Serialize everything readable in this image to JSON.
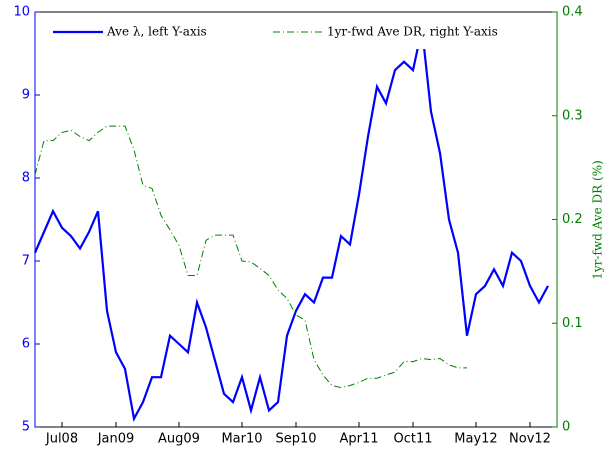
{
  "chart_data": {
    "type": "line",
    "x": [
      "2008-04",
      "2008-05",
      "2008-06",
      "2008-07",
      "2008-08",
      "2008-09",
      "2008-10",
      "2008-11",
      "2008-12",
      "2009-01",
      "2009-02",
      "2009-03",
      "2009-04",
      "2009-05",
      "2009-06",
      "2009-07",
      "2009-08",
      "2009-09",
      "2009-10",
      "2009-11",
      "2009-12",
      "2010-01",
      "2010-02",
      "2010-03",
      "2010-04",
      "2010-05",
      "2010-06",
      "2010-07",
      "2010-08",
      "2010-09",
      "2010-10",
      "2010-11",
      "2010-12",
      "2011-01",
      "2011-02",
      "2011-03",
      "2011-04",
      "2011-05",
      "2011-06",
      "2011-07",
      "2011-08",
      "2011-09",
      "2011-10",
      "2011-11",
      "2011-12",
      "2012-01",
      "2012-02",
      "2012-03",
      "2012-04",
      "2012-05",
      "2012-06",
      "2012-07",
      "2012-08",
      "2012-09",
      "2012-10",
      "2012-11",
      "2012-12",
      "2013-01"
    ],
    "xlim": [
      "2008-04",
      "2013-02"
    ],
    "xticks": [
      {
        "value": "2008-07",
        "label": "Jul08"
      },
      {
        "value": "2009-01",
        "label": "Jan09"
      },
      {
        "value": "2009-08",
        "label": "Aug09"
      },
      {
        "value": "2010-03",
        "label": "Mar10"
      },
      {
        "value": "2010-09",
        "label": "Sep10"
      },
      {
        "value": "2011-04",
        "label": "Apr11"
      },
      {
        "value": "2011-10",
        "label": "Oct11"
      },
      {
        "value": "2012-05",
        "label": "May12"
      },
      {
        "value": "2012-11",
        "label": "Nov12"
      }
    ],
    "ylim": [
      5,
      10
    ],
    "yticks": [
      5,
      6,
      7,
      8,
      9,
      10
    ],
    "y2lim": [
      0,
      0.4
    ],
    "y2ticks": [
      0,
      0.1,
      0.2,
      0.3,
      0.4
    ],
    "y2label": "1yr-fwd Ave DR (%)",
    "series": [
      {
        "name": "Ave λ, left Y-axis",
        "color": "#0000ff",
        "values": [
          7.1,
          7.35,
          7.6,
          7.4,
          7.3,
          7.15,
          7.35,
          7.6,
          6.4,
          5.9,
          5.7,
          5.1,
          5.3,
          5.6,
          5.6,
          6.1,
          6.0,
          5.9,
          6.5,
          6.2,
          5.8,
          5.4,
          5.3,
          5.6,
          5.2,
          5.6,
          5.2,
          5.3,
          6.1,
          6.4,
          6.6,
          6.5,
          6.8,
          6.8,
          7.3,
          7.2,
          7.8,
          8.5,
          9.1,
          8.9,
          9.3,
          9.4,
          9.3,
          9.8,
          8.8,
          8.3,
          7.5,
          7.1,
          6.1,
          6.6,
          6.7,
          6.9,
          6.7,
          7.1,
          7.0,
          6.7,
          6.5,
          6.7
        ]
      },
      {
        "name": "1yr-fwd Ave DR, right Y-axis",
        "color": "#008000",
        "axis": "y2",
        "values": [
          0.243,
          0.276,
          0.276,
          0.284,
          0.286,
          0.28,
          0.276,
          0.284,
          0.29,
          0.29,
          0.29,
          0.267,
          0.233,
          0.23,
          0.204,
          0.19,
          0.175,
          0.146,
          0.146,
          0.18,
          0.185,
          0.185,
          0.185,
          0.16,
          0.159,
          0.153,
          0.146,
          0.132,
          0.124,
          0.108,
          0.103,
          0.065,
          0.05,
          0.04,
          0.038,
          0.04,
          0.043,
          0.047,
          0.047,
          0.05,
          0.053,
          0.063,
          0.063,
          0.066,
          0.065,
          0.066,
          0.06,
          0.057,
          0.057,
          null,
          null,
          null,
          null,
          null,
          null,
          null,
          null,
          null
        ]
      }
    ]
  }
}
